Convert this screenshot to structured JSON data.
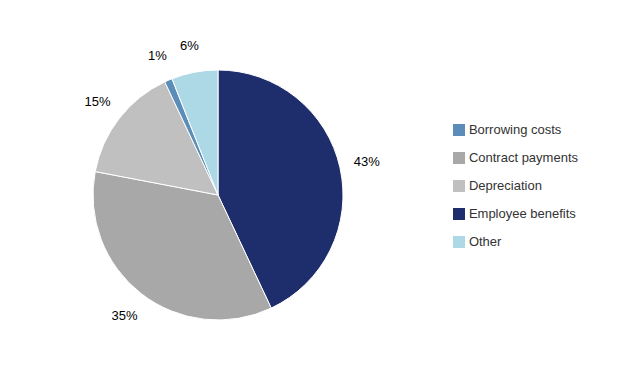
{
  "chart_data": {
    "type": "pie",
    "categories": [
      "Employee benefits",
      "Contract payments",
      "Depreciation",
      "Borrowing costs",
      "Other"
    ],
    "values": [
      43,
      35,
      15,
      1,
      6
    ],
    "value_labels": [
      "43%",
      "35%",
      "15%",
      "1%",
      "6%"
    ],
    "colors": [
      "#1e2d6b",
      "#a8a8a8",
      "#c0c0c0",
      "#5b8db8",
      "#add8e6"
    ],
    "data_labels": true,
    "legend": "right"
  }
}
